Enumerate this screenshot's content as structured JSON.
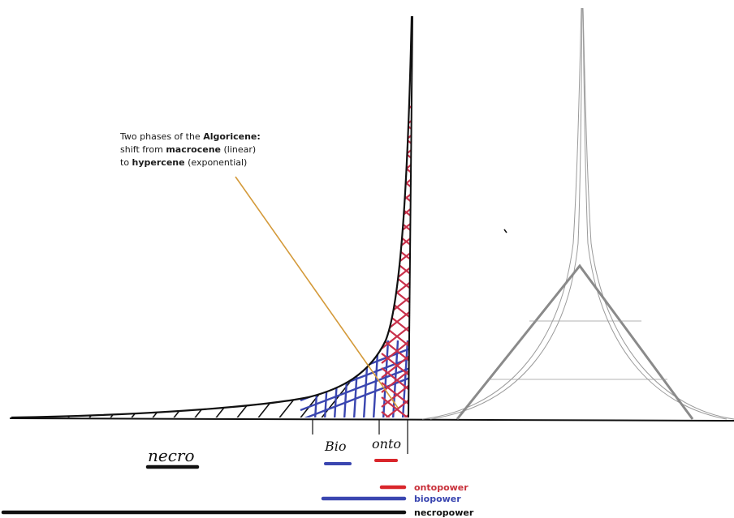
{
  "annotation": {
    "line1_pre": "Two phases of the ",
    "line1_bold": "Algoricene:",
    "line2_pre": "shift from ",
    "line2_bold": "macrocene",
    "line2_post": " (linear)",
    "line3_pre": "to ",
    "line3_bold": "hypercene",
    "line3_post": " (exponential)"
  },
  "hand_labels": {
    "necro": "necro",
    "bio": "Bio",
    "onto": "onto"
  },
  "legend": [
    {
      "label": "ontopower",
      "color": "#d9262b"
    },
    {
      "label": "biopower",
      "color": "#3a46b0"
    },
    {
      "label": "necropower",
      "color": "#111111"
    }
  ],
  "colors": {
    "annotation_pointer": "#d49a3a",
    "triangle": "#8a8a8a",
    "spire": "#9a9a9a",
    "ink": "#111111"
  }
}
